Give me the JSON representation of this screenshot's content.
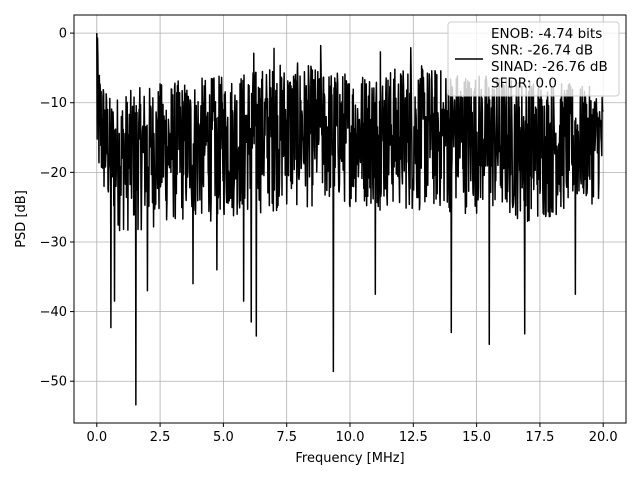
{
  "chart_data": {
    "type": "line",
    "xlabel": "Frequency [MHz]",
    "ylabel": "PSD [dB]",
    "xlim": [
      -0.9,
      20.9
    ],
    "ylim": [
      -56,
      2.6
    ],
    "xticks": [
      0.0,
      2.5,
      5.0,
      7.5,
      10.0,
      12.5,
      15.0,
      17.5,
      20.0
    ],
    "xtick_labels": [
      "0.0",
      "2.5",
      "5.0",
      "7.5",
      "10.0",
      "12.5",
      "15.0",
      "17.5",
      "20.0"
    ],
    "yticks": [
      0,
      -10,
      -20,
      -30,
      -40,
      -50
    ],
    "ytick_labels": [
      "0",
      "−10",
      "−20",
      "−30",
      "−40",
      "−50"
    ],
    "grid": true,
    "line_color": "#000000",
    "legend": {
      "placement": "top-right",
      "lines": [
        "ENOB: -4.74 bits",
        "SNR: -26.74 dB",
        "SINAD: -26.76 dB",
        "SFDR: 0.0"
      ]
    },
    "series": [
      {
        "x_range": [
          0.0,
          20.0
        ],
        "envelope": {
          "x": [
            0.0,
            0.5,
            1.0,
            2.5,
            5.0,
            7.5,
            10.0,
            12.5,
            15.0,
            17.5,
            20.0
          ],
          "upper": [
            -3,
            -9,
            -8.5,
            -7,
            -6,
            -4,
            -5.5,
            -4.5,
            -5.5,
            -6.5,
            -8
          ],
          "lower": [
            -22,
            -27,
            -29,
            -28,
            -27,
            -25.5,
            -25,
            -26,
            -26,
            -27.5,
            -24
          ]
        },
        "peaks": [
          {
            "x": 0.0,
            "y": 0.0
          },
          {
            "x": 0.03,
            "y": -0.7
          },
          {
            "x": 6.2,
            "y": -2.9
          },
          {
            "x": 7.0,
            "y": -2.2
          },
          {
            "x": 8.85,
            "y": -1.8
          },
          {
            "x": 11.2,
            "y": -2.7
          },
          {
            "x": 12.4,
            "y": -2.1
          }
        ],
        "dips": [
          {
            "x": 0.55,
            "y": -42.3
          },
          {
            "x": 0.7,
            "y": -38.5
          },
          {
            "x": 1.55,
            "y": -53.4
          },
          {
            "x": 2.0,
            "y": -37.0
          },
          {
            "x": 3.8,
            "y": -36.0
          },
          {
            "x": 4.75,
            "y": -34.0
          },
          {
            "x": 5.8,
            "y": -38.5
          },
          {
            "x": 6.1,
            "y": -41.5
          },
          {
            "x": 6.3,
            "y": -43.5
          },
          {
            "x": 9.35,
            "y": -48.6
          },
          {
            "x": 11.0,
            "y": -37.5
          },
          {
            "x": 14.0,
            "y": -43.0
          },
          {
            "x": 15.5,
            "y": -44.7
          },
          {
            "x": 16.9,
            "y": -43.2
          },
          {
            "x": 18.9,
            "y": -37.5
          }
        ]
      }
    ]
  }
}
